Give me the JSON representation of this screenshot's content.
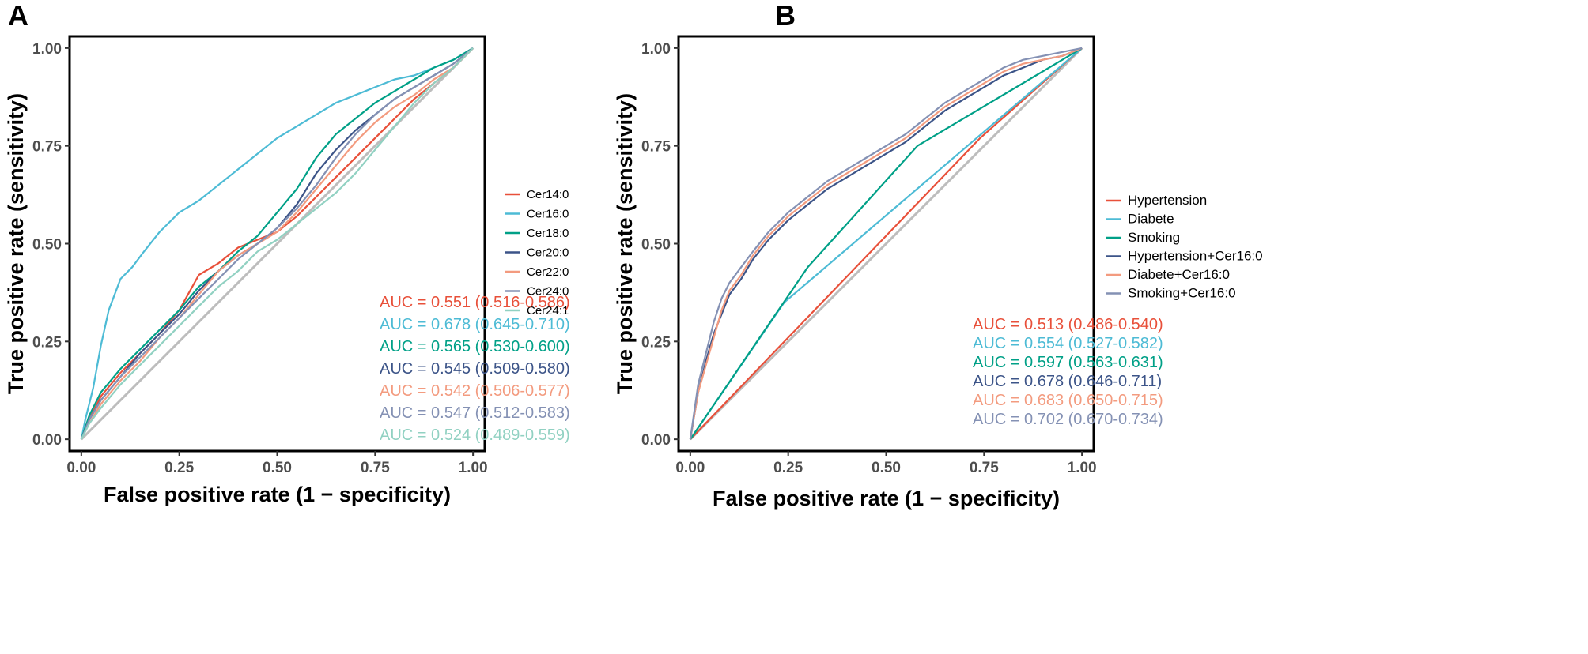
{
  "chart_data": [
    {
      "panel": "A",
      "type": "line",
      "xlabel": "False positive rate (1 − specificity)",
      "ylabel": "True positive rate (sensitivity)",
      "xlim": [
        0,
        1
      ],
      "ylim": [
        0,
        1
      ],
      "x_ticks": [
        "0.00",
        "0.25",
        "0.50",
        "0.75",
        "1.00"
      ],
      "y_ticks": [
        "0.00",
        "0.25",
        "0.50",
        "0.75",
        "1.00"
      ],
      "grid": false,
      "diagonal_reference": true,
      "legend_position": "right",
      "series": [
        {
          "name": "Cer14:0",
          "color": "#e8503a",
          "auc_label": "AUC = 0.551 (0.516-0.586)",
          "points": [
            [
              0,
              0
            ],
            [
              0.02,
              0.05
            ],
            [
              0.05,
              0.11
            ],
            [
              0.1,
              0.17
            ],
            [
              0.15,
              0.22
            ],
            [
              0.2,
              0.27
            ],
            [
              0.25,
              0.33
            ],
            [
              0.3,
              0.42
            ],
            [
              0.35,
              0.45
            ],
            [
              0.4,
              0.49
            ],
            [
              0.45,
              0.51
            ],
            [
              0.5,
              0.53
            ],
            [
              0.55,
              0.57
            ],
            [
              0.6,
              0.62
            ],
            [
              0.65,
              0.67
            ],
            [
              0.7,
              0.72
            ],
            [
              0.75,
              0.77
            ],
            [
              0.8,
              0.82
            ],
            [
              0.85,
              0.87
            ],
            [
              0.9,
              0.91
            ],
            [
              0.95,
              0.95
            ],
            [
              1,
              1
            ]
          ]
        },
        {
          "name": "Cer16:0",
          "color": "#4dbbd5",
          "auc_label": "AUC = 0.678 (0.645-0.710)",
          "points": [
            [
              0,
              0
            ],
            [
              0.01,
              0.05
            ],
            [
              0.03,
              0.13
            ],
            [
              0.05,
              0.24
            ],
            [
              0.07,
              0.33
            ],
            [
              0.1,
              0.41
            ],
            [
              0.13,
              0.44
            ],
            [
              0.16,
              0.48
            ],
            [
              0.2,
              0.53
            ],
            [
              0.25,
              0.58
            ],
            [
              0.3,
              0.61
            ],
            [
              0.35,
              0.65
            ],
            [
              0.4,
              0.69
            ],
            [
              0.45,
              0.73
            ],
            [
              0.5,
              0.77
            ],
            [
              0.55,
              0.8
            ],
            [
              0.6,
              0.83
            ],
            [
              0.65,
              0.86
            ],
            [
              0.7,
              0.88
            ],
            [
              0.75,
              0.9
            ],
            [
              0.8,
              0.92
            ],
            [
              0.85,
              0.93
            ],
            [
              0.9,
              0.95
            ],
            [
              0.95,
              0.97
            ],
            [
              1,
              1
            ]
          ]
        },
        {
          "name": "Cer18:0",
          "color": "#00a087",
          "auc_label": "AUC = 0.565 (0.530-0.600)",
          "points": [
            [
              0,
              0
            ],
            [
              0.02,
              0.06
            ],
            [
              0.05,
              0.12
            ],
            [
              0.1,
              0.18
            ],
            [
              0.15,
              0.23
            ],
            [
              0.2,
              0.28
            ],
            [
              0.25,
              0.33
            ],
            [
              0.3,
              0.39
            ],
            [
              0.35,
              0.43
            ],
            [
              0.4,
              0.48
            ],
            [
              0.45,
              0.52
            ],
            [
              0.5,
              0.58
            ],
            [
              0.55,
              0.64
            ],
            [
              0.6,
              0.72
            ],
            [
              0.65,
              0.78
            ],
            [
              0.7,
              0.82
            ],
            [
              0.75,
              0.86
            ],
            [
              0.8,
              0.89
            ],
            [
              0.85,
              0.92
            ],
            [
              0.9,
              0.95
            ],
            [
              0.95,
              0.97
            ],
            [
              1,
              1
            ]
          ]
        },
        {
          "name": "Cer20:0",
          "color": "#3c5488",
          "auc_label": "AUC = 0.545 (0.509-0.580)",
          "points": [
            [
              0,
              0
            ],
            [
              0.02,
              0.05
            ],
            [
              0.05,
              0.1
            ],
            [
              0.1,
              0.16
            ],
            [
              0.15,
              0.22
            ],
            [
              0.2,
              0.27
            ],
            [
              0.25,
              0.32
            ],
            [
              0.3,
              0.38
            ],
            [
              0.35,
              0.43
            ],
            [
              0.4,
              0.47
            ],
            [
              0.45,
              0.5
            ],
            [
              0.5,
              0.54
            ],
            [
              0.55,
              0.6
            ],
            [
              0.6,
              0.68
            ],
            [
              0.65,
              0.74
            ],
            [
              0.7,
              0.79
            ],
            [
              0.75,
              0.83
            ],
            [
              0.8,
              0.87
            ],
            [
              0.85,
              0.9
            ],
            [
              0.9,
              0.93
            ],
            [
              0.95,
              0.96
            ],
            [
              1,
              1
            ]
          ]
        },
        {
          "name": "Cer22:0",
          "color": "#f39b7f",
          "auc_label": "AUC = 0.542 (0.506-0.577)",
          "points": [
            [
              0,
              0
            ],
            [
              0.02,
              0.04
            ],
            [
              0.05,
              0.09
            ],
            [
              0.1,
              0.15
            ],
            [
              0.15,
              0.2
            ],
            [
              0.2,
              0.26
            ],
            [
              0.25,
              0.31
            ],
            [
              0.3,
              0.37
            ],
            [
              0.35,
              0.43
            ],
            [
              0.4,
              0.47
            ],
            [
              0.45,
              0.5
            ],
            [
              0.5,
              0.53
            ],
            [
              0.55,
              0.58
            ],
            [
              0.6,
              0.64
            ],
            [
              0.65,
              0.7
            ],
            [
              0.7,
              0.76
            ],
            [
              0.75,
              0.81
            ],
            [
              0.8,
              0.85
            ],
            [
              0.85,
              0.88
            ],
            [
              0.9,
              0.92
            ],
            [
              0.95,
              0.95
            ],
            [
              1,
              1
            ]
          ]
        },
        {
          "name": "Cer24:0",
          "color": "#8491b4",
          "auc_label": "AUC = 0.547 (0.512-0.583)",
          "points": [
            [
              0,
              0
            ],
            [
              0.02,
              0.05
            ],
            [
              0.05,
              0.1
            ],
            [
              0.1,
              0.16
            ],
            [
              0.15,
              0.21
            ],
            [
              0.2,
              0.26
            ],
            [
              0.25,
              0.31
            ],
            [
              0.3,
              0.36
            ],
            [
              0.35,
              0.41
            ],
            [
              0.4,
              0.46
            ],
            [
              0.45,
              0.5
            ],
            [
              0.5,
              0.54
            ],
            [
              0.55,
              0.59
            ],
            [
              0.6,
              0.65
            ],
            [
              0.65,
              0.72
            ],
            [
              0.7,
              0.78
            ],
            [
              0.75,
              0.83
            ],
            [
              0.8,
              0.87
            ],
            [
              0.85,
              0.9
            ],
            [
              0.9,
              0.93
            ],
            [
              0.95,
              0.96
            ],
            [
              1,
              1
            ]
          ]
        },
        {
          "name": "Cer24:1",
          "color": "#91d1c2",
          "auc_label": "AUC = 0.524 (0.489-0.559)",
          "points": [
            [
              0,
              0
            ],
            [
              0.02,
              0.04
            ],
            [
              0.05,
              0.08
            ],
            [
              0.1,
              0.14
            ],
            [
              0.15,
              0.19
            ],
            [
              0.2,
              0.24
            ],
            [
              0.25,
              0.29
            ],
            [
              0.3,
              0.34
            ],
            [
              0.35,
              0.39
            ],
            [
              0.4,
              0.43
            ],
            [
              0.45,
              0.48
            ],
            [
              0.5,
              0.51
            ],
            [
              0.55,
              0.55
            ],
            [
              0.6,
              0.59
            ],
            [
              0.65,
              0.63
            ],
            [
              0.7,
              0.68
            ],
            [
              0.75,
              0.74
            ],
            [
              0.8,
              0.8
            ],
            [
              0.85,
              0.86
            ],
            [
              0.9,
              0.91
            ],
            [
              0.95,
              0.95
            ],
            [
              1,
              1
            ]
          ]
        }
      ]
    },
    {
      "panel": "B",
      "type": "line",
      "xlabel": "False positive rate (1 − specificity)",
      "ylabel": "True positive rate (sensitivity)",
      "xlim": [
        0,
        1
      ],
      "ylim": [
        0,
        1
      ],
      "x_ticks": [
        "0.00",
        "0.25",
        "0.50",
        "0.75",
        "1.00"
      ],
      "y_ticks": [
        "0.00",
        "0.25",
        "0.50",
        "0.75",
        "1.00"
      ],
      "grid": false,
      "diagonal_reference": true,
      "legend_position": "right",
      "series": [
        {
          "name": "Hypertension",
          "color": "#e8503a",
          "auc_label": "AUC = 0.513 (0.486-0.540)",
          "points": [
            [
              0,
              0
            ],
            [
              0.74,
              0.77
            ],
            [
              1,
              1
            ]
          ]
        },
        {
          "name": "Diabete",
          "color": "#4dbbd5",
          "auc_label": "AUC = 0.554 (0.527-0.582)",
          "points": [
            [
              0,
              0
            ],
            [
              0.24,
              0.35
            ],
            [
              1,
              1
            ]
          ]
        },
        {
          "name": "Smoking",
          "color": "#00a087",
          "auc_label": "AUC = 0.597 (0.563-0.631)",
          "points": [
            [
              0,
              0
            ],
            [
              0.3,
              0.44
            ],
            [
              0.58,
              0.75
            ],
            [
              1,
              1
            ]
          ]
        },
        {
          "name": "Hypertension+Cer16:0",
          "color": "#3c5488",
          "auc_label": "AUC = 0.678 (0.646-0.711)",
          "points": [
            [
              0,
              0
            ],
            [
              0.01,
              0.06
            ],
            [
              0.02,
              0.12
            ],
            [
              0.04,
              0.2
            ],
            [
              0.06,
              0.27
            ],
            [
              0.08,
              0.32
            ],
            [
              0.1,
              0.37
            ],
            [
              0.13,
              0.41
            ],
            [
              0.16,
              0.46
            ],
            [
              0.2,
              0.51
            ],
            [
              0.25,
              0.56
            ],
            [
              0.3,
              0.6
            ],
            [
              0.35,
              0.64
            ],
            [
              0.4,
              0.67
            ],
            [
              0.45,
              0.7
            ],
            [
              0.5,
              0.73
            ],
            [
              0.55,
              0.76
            ],
            [
              0.6,
              0.8
            ],
            [
              0.65,
              0.84
            ],
            [
              0.7,
              0.87
            ],
            [
              0.75,
              0.9
            ],
            [
              0.8,
              0.93
            ],
            [
              0.85,
              0.95
            ],
            [
              0.9,
              0.97
            ],
            [
              0.95,
              0.98
            ],
            [
              1,
              1
            ]
          ]
        },
        {
          "name": "Diabete+Cer16:0",
          "color": "#f39b7f",
          "auc_label": "AUC = 0.683 (0.650-0.715)",
          "points": [
            [
              0,
              0
            ],
            [
              0.01,
              0.06
            ],
            [
              0.02,
              0.12
            ],
            [
              0.04,
              0.19
            ],
            [
              0.06,
              0.26
            ],
            [
              0.08,
              0.33
            ],
            [
              0.1,
              0.38
            ],
            [
              0.13,
              0.42
            ],
            [
              0.16,
              0.47
            ],
            [
              0.2,
              0.52
            ],
            [
              0.25,
              0.57
            ],
            [
              0.3,
              0.61
            ],
            [
              0.35,
              0.65
            ],
            [
              0.4,
              0.68
            ],
            [
              0.45,
              0.71
            ],
            [
              0.5,
              0.74
            ],
            [
              0.55,
              0.77
            ],
            [
              0.6,
              0.81
            ],
            [
              0.65,
              0.85
            ],
            [
              0.7,
              0.88
            ],
            [
              0.75,
              0.91
            ],
            [
              0.8,
              0.94
            ],
            [
              0.85,
              0.96
            ],
            [
              0.9,
              0.97
            ],
            [
              0.95,
              0.98
            ],
            [
              1,
              1
            ]
          ]
        },
        {
          "name": "Smoking+Cer16:0",
          "color": "#8491b4",
          "auc_label": "AUC = 0.702 (0.670-0.734)",
          "points": [
            [
              0,
              0
            ],
            [
              0.01,
              0.07
            ],
            [
              0.02,
              0.14
            ],
            [
              0.04,
              0.22
            ],
            [
              0.06,
              0.3
            ],
            [
              0.08,
              0.36
            ],
            [
              0.1,
              0.4
            ],
            [
              0.13,
              0.44
            ],
            [
              0.16,
              0.48
            ],
            [
              0.2,
              0.53
            ],
            [
              0.25,
              0.58
            ],
            [
              0.3,
              0.62
            ],
            [
              0.35,
              0.66
            ],
            [
              0.4,
              0.69
            ],
            [
              0.45,
              0.72
            ],
            [
              0.5,
              0.75
            ],
            [
              0.55,
              0.78
            ],
            [
              0.6,
              0.82
            ],
            [
              0.65,
              0.86
            ],
            [
              0.7,
              0.89
            ],
            [
              0.75,
              0.92
            ],
            [
              0.8,
              0.95
            ],
            [
              0.85,
              0.97
            ],
            [
              0.9,
              0.98
            ],
            [
              0.95,
              0.99
            ],
            [
              1,
              1
            ]
          ]
        }
      ]
    }
  ],
  "panels": {
    "A": {
      "letter": "A"
    },
    "B": {
      "letter": "B"
    }
  }
}
